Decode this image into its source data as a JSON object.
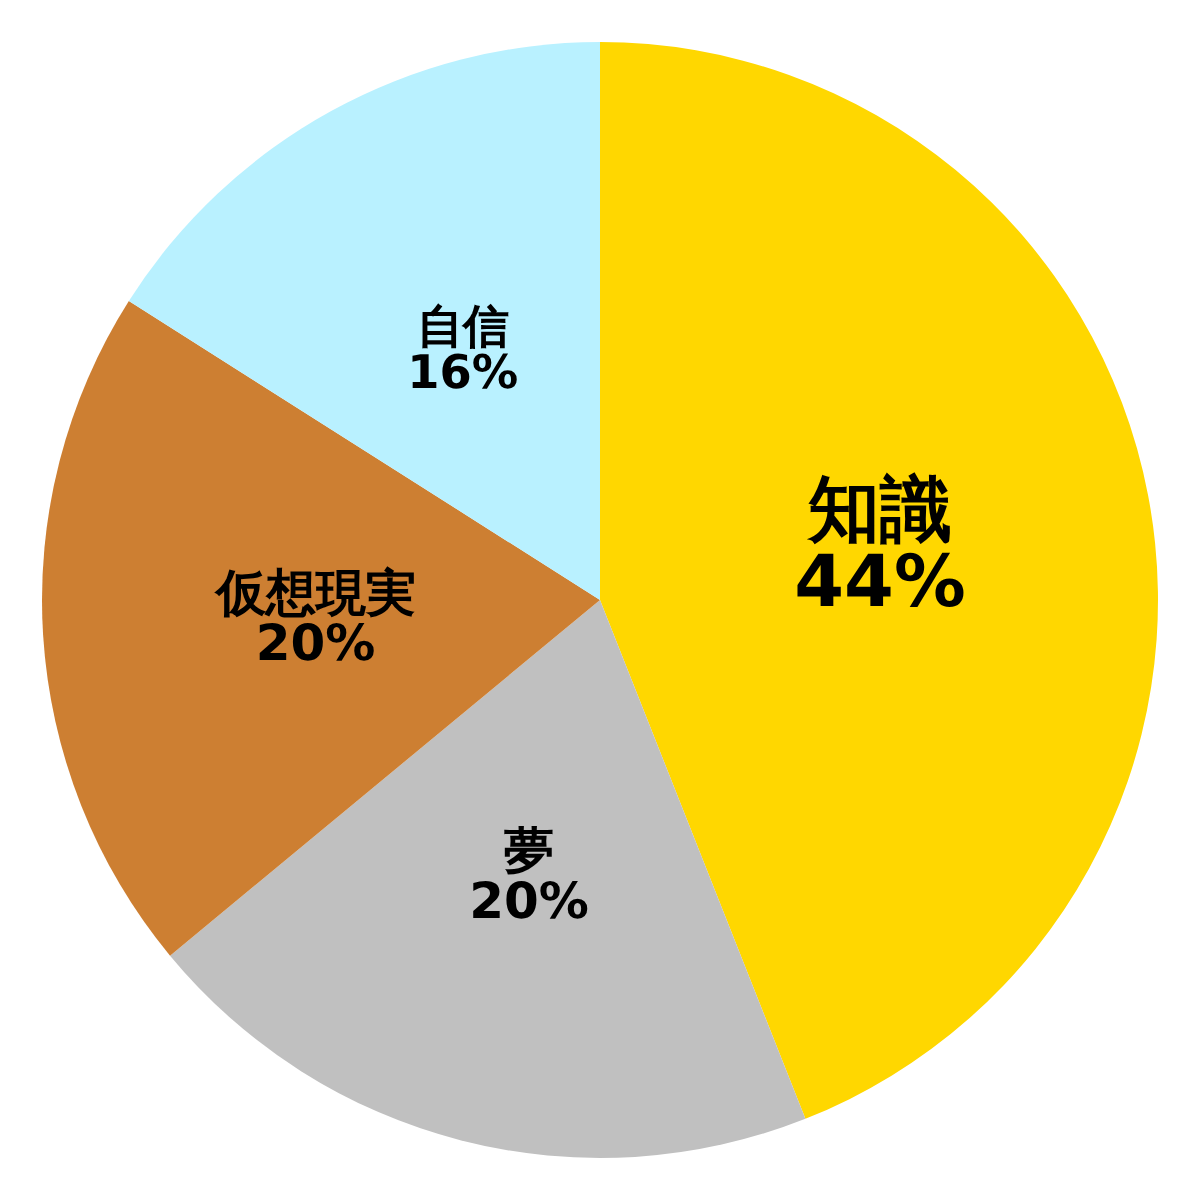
{
  "chart_data": {
    "type": "pie",
    "categories": [
      "知識",
      "夢",
      "仮想現実",
      "自信"
    ],
    "values": [
      44,
      20,
      20,
      16
    ],
    "colors": [
      "#ffd700",
      "#c0c0c0",
      "#cd7f32",
      "#b9f1ff"
    ],
    "value_labels": [
      "44%",
      "20%",
      "20%",
      "16%"
    ]
  }
}
